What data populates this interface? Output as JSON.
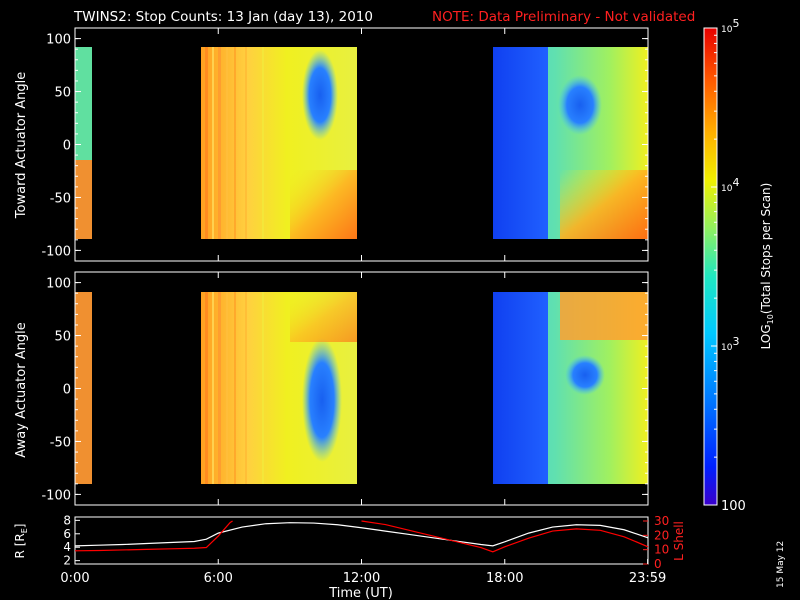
{
  "header": {
    "title": "TWINS2: Stop Counts: 13 Jan (day  13), 2010",
    "note": "NOTE: Data Preliminary - Not validated"
  },
  "stamp": "15 May 12",
  "colors": {
    "background": "#000000",
    "axes": "#ffffff",
    "note": "#ff0000",
    "r_line": "#ffffff",
    "lshell_line": "#ff0000"
  },
  "colorbar": {
    "label": "LOG10(Total Stops per Scan)",
    "label_main": "LOG",
    "label_sub": "10",
    "label_rest": "(Total Stops per Scan)",
    "scale": "log",
    "range": [
      100,
      100000
    ],
    "ticks": [
      {
        "value": 100000,
        "base": "10",
        "exp": "5"
      },
      {
        "value": 10000,
        "base": "10",
        "exp": "4"
      },
      {
        "value": 1000,
        "base": "10",
        "exp": "3"
      },
      {
        "value": 100,
        "base": "100",
        "exp": ""
      }
    ],
    "colormap": "rainbow (blue-cyan-green-yellow-orange-red)"
  },
  "chart_data": [
    {
      "type": "heatmap",
      "panel": "toward",
      "ylabel": "Toward Actuator Angle",
      "ylim": [
        -110,
        110
      ],
      "yticks": [
        100,
        50,
        0,
        -50,
        -100
      ],
      "ytick_labels": [
        "100",
        "50",
        "0",
        "-50",
        "-100"
      ],
      "xlim_hours": [
        0,
        24
      ],
      "data_range_deg": [
        -90,
        90
      ],
      "data_intervals_hours": [
        [
          0.0,
          0.3
        ],
        [
          5.3,
          11.95
        ],
        [
          17.55,
          24.0
        ]
      ],
      "color_value_log10": [
        {
          "hours": [
            0.0,
            0.3
          ],
          "level": "cyan-green, orange below -50"
        },
        {
          "hours": [
            5.3,
            9.0
          ],
          "level": "4.3-4.6 (yellow-orange)"
        },
        {
          "hours": [
            9.0,
            10.0
          ],
          "angle": [
            40,
            100
          ],
          "level": "2.6 (blue)"
        },
        {
          "hours": [
            17.55,
            20.0
          ],
          "level": "2.4 (blue)"
        },
        {
          "hours": [
            20.0,
            24.0
          ],
          "level": "3.3-3.8 (cyan-green), 4.7 (orange) at bottom right"
        }
      ]
    },
    {
      "type": "heatmap",
      "panel": "away",
      "ylabel": "Away Actuator Angle",
      "ylim": [
        -110,
        110
      ],
      "yticks": [
        100,
        50,
        0,
        -50,
        -100
      ],
      "ytick_labels": [
        "100",
        "50",
        "0",
        "-50",
        "-100"
      ],
      "xlim_hours": [
        0,
        24
      ],
      "data_range_deg": [
        -90,
        90
      ],
      "data_intervals_hours": [
        [
          0.0,
          0.3
        ],
        [
          5.3,
          11.95
        ],
        [
          17.55,
          24.0
        ]
      ],
      "color_value_log10": [
        {
          "hours": [
            0.0,
            0.3
          ],
          "level": "orange"
        },
        {
          "hours": [
            5.3,
            9.0
          ],
          "level": "4.3-4.6 (yellow-orange)"
        },
        {
          "hours": [
            9.0,
            10.0
          ],
          "angle": [
            -80,
            50
          ],
          "level": "2.6 (blue)"
        },
        {
          "hours": [
            17.55,
            20.0
          ],
          "level": "2.4 (blue)"
        },
        {
          "hours": [
            20.0,
            24.0
          ],
          "level": "3.2-3.7 (cyan), 4.7 (orange) at top right"
        }
      ]
    },
    {
      "type": "line",
      "panel": "orbit",
      "ylabel_left": "R [RE]",
      "ylabel_left_main": "R [R",
      "ylabel_left_sub": "E",
      "ylabel_left_end": "]",
      "ylabel_right": "L Shell",
      "ylim_left": [
        1.5,
        8.5
      ],
      "yticks_left": [
        2,
        4,
        6,
        8
      ],
      "ylim_right": [
        0,
        30
      ],
      "yticks_right": [
        0,
        10,
        20,
        30
      ],
      "xlabel": "Time (UT)",
      "xlim_hours": [
        0,
        24
      ],
      "xticks_hours": [
        0,
        6,
        12,
        18,
        23.983
      ],
      "xtick_labels": [
        "0:00",
        "6:00",
        "12:00",
        "18:00",
        "23:59"
      ],
      "series": [
        {
          "name": "R [RE]",
          "axis": "left",
          "color": "#ffffff",
          "x": [
            0,
            1,
            2,
            3,
            4,
            5,
            5.5,
            6,
            7,
            8,
            9,
            10,
            11,
            12,
            13,
            14,
            15,
            16,
            17,
            17.5,
            18,
            19,
            20,
            21,
            22,
            23,
            24
          ],
          "y": [
            4.2,
            4.3,
            4.4,
            4.55,
            4.7,
            4.85,
            5.2,
            6.1,
            7.0,
            7.5,
            7.65,
            7.6,
            7.35,
            6.9,
            6.4,
            5.9,
            5.4,
            4.9,
            4.4,
            4.2,
            4.8,
            6.1,
            7.0,
            7.35,
            7.25,
            6.6,
            5.4
          ]
        },
        {
          "name": "L Shell",
          "axis": "right",
          "color": "#ff0000",
          "x": [
            0,
            1,
            2,
            3,
            4,
            5,
            5.5,
            6,
            6.5,
            6.6
          ],
          "y": [
            9.2,
            9.4,
            9.8,
            10.2,
            10.6,
            11.0,
            11.5,
            19.5,
            29.0,
            30.0
          ],
          "continuation": {
            "x": [
              12.0,
              13,
              14,
              15,
              16,
              17,
              17.5,
              18,
              19,
              20,
              21,
              22,
              23,
              24
            ],
            "y": [
              30.0,
              27.5,
              23.5,
              19.5,
              15.5,
              11.5,
              8.5,
              12.0,
              18.0,
              23.0,
              24.5,
              23.5,
              19.0,
              12.0
            ]
          }
        }
      ]
    }
  ]
}
